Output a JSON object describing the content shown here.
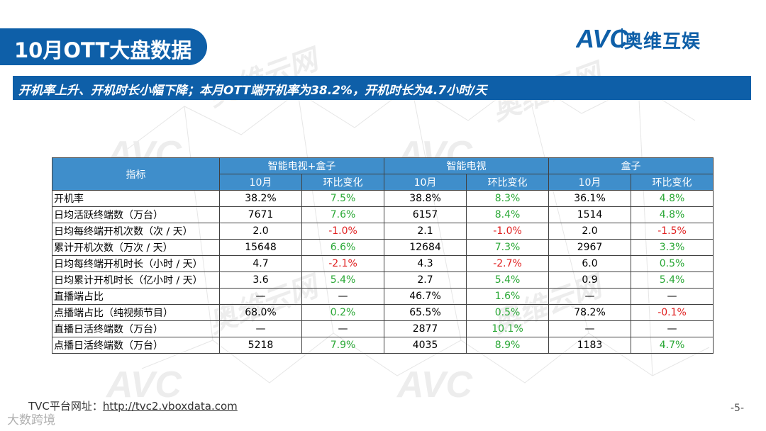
{
  "header": {
    "title": "10月OTT大盘数据",
    "logo_letters": "AVC",
    "logo_text": "奥维互娱",
    "subtitle": "开机率上升、开机时长小幅下降；本月OTT端开机率为38.2%，开机时长为4.7小时/天"
  },
  "table": {
    "metric_header": "指标",
    "groups": [
      "智能电视+盒子",
      "智能电视",
      "盒子"
    ],
    "subheaders": [
      "10月",
      "环比变化"
    ],
    "rows": [
      {
        "metric": "开机率",
        "cells": [
          [
            "38.2%",
            "num"
          ],
          [
            "7.5%",
            "up"
          ],
          [
            "38.8%",
            "num"
          ],
          [
            "8.3%",
            "up"
          ],
          [
            "36.1%",
            "num"
          ],
          [
            "4.8%",
            "up"
          ]
        ]
      },
      {
        "metric": "日均活跃终端数（万台）",
        "cells": [
          [
            "7671",
            "num"
          ],
          [
            "7.6%",
            "up"
          ],
          [
            "6157",
            "num"
          ],
          [
            "8.4%",
            "up"
          ],
          [
            "1514",
            "num"
          ],
          [
            "4.8%",
            "up"
          ]
        ]
      },
      {
        "metric": "日均每终端开机次数（次 / 天）",
        "cells": [
          [
            "2.0",
            "num"
          ],
          [
            "-1.0%",
            "down"
          ],
          [
            "2.1",
            "num"
          ],
          [
            "-1.0%",
            "down"
          ],
          [
            "2.0",
            "num"
          ],
          [
            "-1.5%",
            "down"
          ]
        ]
      },
      {
        "metric": "累计开机次数（万次 / 天）",
        "cells": [
          [
            "15648",
            "num"
          ],
          [
            "6.6%",
            "up"
          ],
          [
            "12684",
            "num"
          ],
          [
            "7.3%",
            "up"
          ],
          [
            "2967",
            "num"
          ],
          [
            "3.3%",
            "up"
          ]
        ]
      },
      {
        "metric": "日均每终端开机时长（小时 / 天）",
        "cells": [
          [
            "4.7",
            "num"
          ],
          [
            "-2.1%",
            "down"
          ],
          [
            "4.3",
            "num"
          ],
          [
            "-2.7%",
            "down"
          ],
          [
            "6.0",
            "num"
          ],
          [
            "0.5%",
            "up"
          ]
        ]
      },
      {
        "metric": "日均累计开机时长（亿小时 / 天）",
        "cells": [
          [
            "3.6",
            "num"
          ],
          [
            "5.4%",
            "up"
          ],
          [
            "2.7",
            "num"
          ],
          [
            "5.4%",
            "up"
          ],
          [
            "0.9",
            "num"
          ],
          [
            "5.4%",
            "up"
          ]
        ]
      },
      {
        "metric": "直播端占比",
        "cells": [
          [
            "—",
            "na"
          ],
          [
            "—",
            "na"
          ],
          [
            "46.7%",
            "num"
          ],
          [
            "1.6%",
            "up"
          ],
          [
            "—",
            "na"
          ],
          [
            "—",
            "na"
          ]
        ]
      },
      {
        "metric": "点播端占比（纯视频节目）",
        "cells": [
          [
            "68.0%",
            "num"
          ],
          [
            "0.2%",
            "up"
          ],
          [
            "65.5%",
            "num"
          ],
          [
            "0.5%",
            "up"
          ],
          [
            "78.2%",
            "num"
          ],
          [
            "-0.1%",
            "down"
          ]
        ]
      },
      {
        "metric": "直播日活终端数（万台）",
        "cells": [
          [
            "—",
            "na"
          ],
          [
            "—",
            "na"
          ],
          [
            "2877",
            "num"
          ],
          [
            "10.1%",
            "up"
          ],
          [
            "—",
            "na"
          ],
          [
            "—",
            "na"
          ]
        ]
      },
      {
        "metric": "点播日活终端数（万台）",
        "cells": [
          [
            "5218",
            "num"
          ],
          [
            "7.9%",
            "up"
          ],
          [
            "4035",
            "num"
          ],
          [
            "8.9%",
            "up"
          ],
          [
            "1183",
            "num"
          ],
          [
            "4.7%",
            "up"
          ]
        ]
      }
    ]
  },
  "footer": {
    "url_label": "TVC平台网址：",
    "url": "http://tvc2.vboxdata.com",
    "page_number": "-5-",
    "watermark": "大数跨境"
  },
  "colors": {
    "brand_blue": "#0e5fa8",
    "header_blue": "#3f8ecb",
    "increase_green": "#2aa836",
    "decrease_red": "#e02020"
  }
}
